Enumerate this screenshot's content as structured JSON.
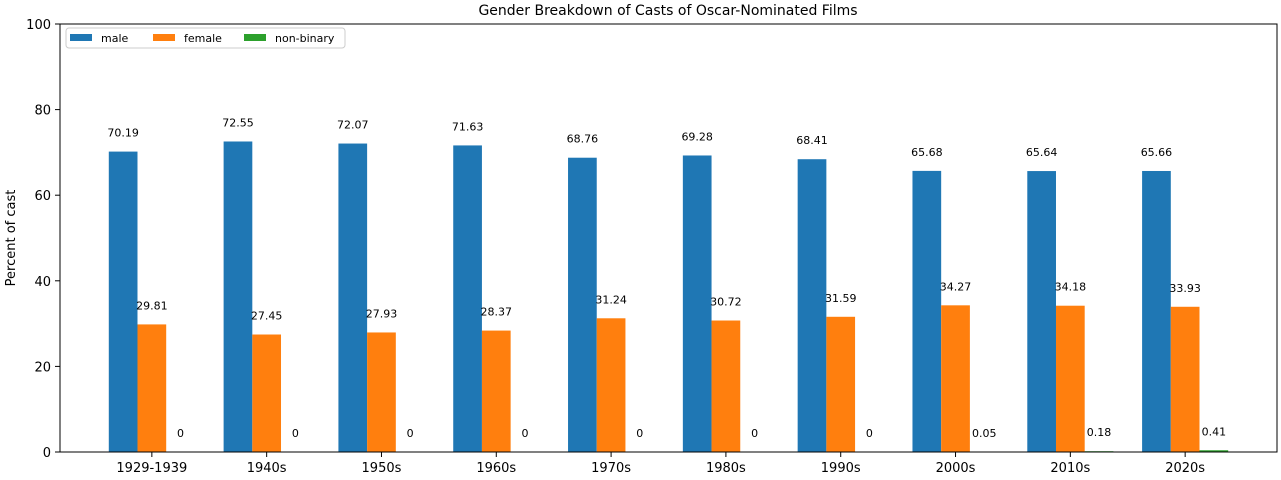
{
  "chart_data": {
    "type": "bar",
    "title": "Gender Breakdown of Casts of Oscar-Nominated Films",
    "xlabel": "",
    "ylabel": "Percent of cast",
    "ylim": [
      0,
      100
    ],
    "yticks": [
      0,
      20,
      40,
      60,
      80,
      100
    ],
    "grid": false,
    "legend_position": "top-left",
    "categories": [
      "1929-1939",
      "1940s",
      "1950s",
      "1960s",
      "1970s",
      "1980s",
      "1990s",
      "2000s",
      "2010s",
      "2020s"
    ],
    "series": [
      {
        "name": "male",
        "color": "#1f77b4",
        "values": [
          70.19,
          72.55,
          72.07,
          71.63,
          68.76,
          69.28,
          68.41,
          65.68,
          65.64,
          65.66
        ]
      },
      {
        "name": "female",
        "color": "#ff7f0e",
        "values": [
          29.81,
          27.45,
          27.93,
          28.37,
          31.24,
          30.72,
          31.59,
          34.27,
          34.18,
          33.93
        ]
      },
      {
        "name": "non-binary",
        "color": "#2ca02c",
        "values": [
          0,
          0,
          0,
          0,
          0,
          0,
          0,
          0.05,
          0.18,
          0.41
        ]
      }
    ]
  }
}
